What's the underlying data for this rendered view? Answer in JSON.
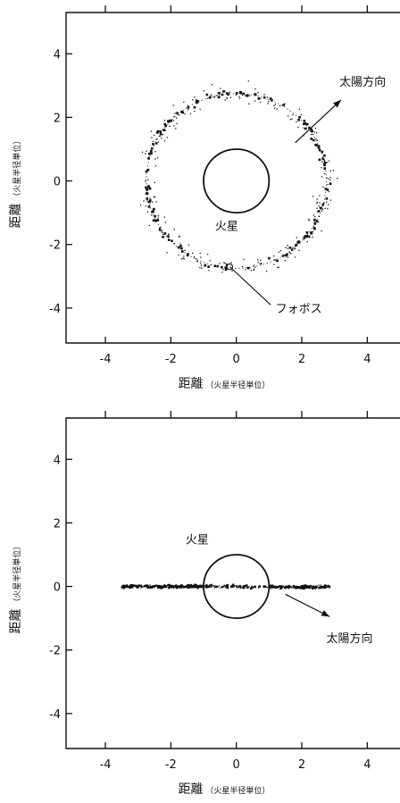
{
  "chart_data": [
    {
      "type": "scatter",
      "title": "",
      "xlabel_main": "距離",
      "xlabel_sub": "（火星半径単位）",
      "ylabel_main": "距離",
      "ylabel_sub": "（火星半径単位）",
      "xlim": [
        -5.2,
        5.0
      ],
      "ylim": [
        -5.1,
        5.3
      ],
      "xticks": [
        -4,
        -2,
        0,
        2,
        4
      ],
      "xtick_labels": [
        "-4",
        "-2",
        "0",
        "2",
        "4"
      ],
      "yticks": [
        4,
        2,
        0,
        -2,
        -4
      ],
      "ytick_labels": [
        "4",
        "2",
        "0",
        "-2",
        "-4"
      ],
      "mars": {
        "cx": 0,
        "cy": 0,
        "r": 1.0,
        "label": "火星",
        "label_x": -0.65,
        "label_y": -1.55
      },
      "orbit": {
        "shape": "circle",
        "rx": 2.75,
        "ry": 2.75
      },
      "particle_distribution": "ring",
      "annotations": [
        {
          "text": "太陽方向",
          "kind": "arrow",
          "from": [
            1.8,
            1.2
          ],
          "to": [
            3.2,
            2.55
          ],
          "label_x": 3.15,
          "label_y": 3.0
        },
        {
          "text": "フォボス",
          "kind": "pointer",
          "from": [
            -0.2,
            -2.7
          ],
          "to": [
            1.05,
            -3.9
          ],
          "label_x": 1.2,
          "label_y": -4.15,
          "marker": [
            -0.2,
            -2.7
          ]
        }
      ]
    },
    {
      "type": "scatter",
      "title": "",
      "xlabel_main": "距離",
      "xlabel_sub": "（火星半径単位）",
      "ylabel_main": "距離",
      "ylabel_sub": "（火星半径単位）",
      "xlim": [
        -5.2,
        5.0
      ],
      "ylim": [
        -5.1,
        5.3
      ],
      "xticks": [
        -4,
        -2,
        0,
        2,
        4
      ],
      "xtick_labels": [
        "-4",
        "-2",
        "0",
        "2",
        "4"
      ],
      "yticks": [
        4,
        2,
        0,
        -2,
        -4
      ],
      "ytick_labels": [
        "4",
        "2",
        "0",
        "-2",
        "-4"
      ],
      "mars": {
        "cx": 0,
        "cy": 0,
        "r": 1.0,
        "label": "火星",
        "label_x": -1.55,
        "label_y": 1.35
      },
      "particle_distribution": "band",
      "band": {
        "xmin": -3.5,
        "xmax": 2.85,
        "y": 0.0
      },
      "annotations": [
        {
          "text": "太陽方向",
          "kind": "arrow",
          "from": [
            1.5,
            -0.25
          ],
          "to": [
            2.85,
            -0.95
          ],
          "label_x": 2.75,
          "label_y": -1.75
        }
      ]
    }
  ]
}
